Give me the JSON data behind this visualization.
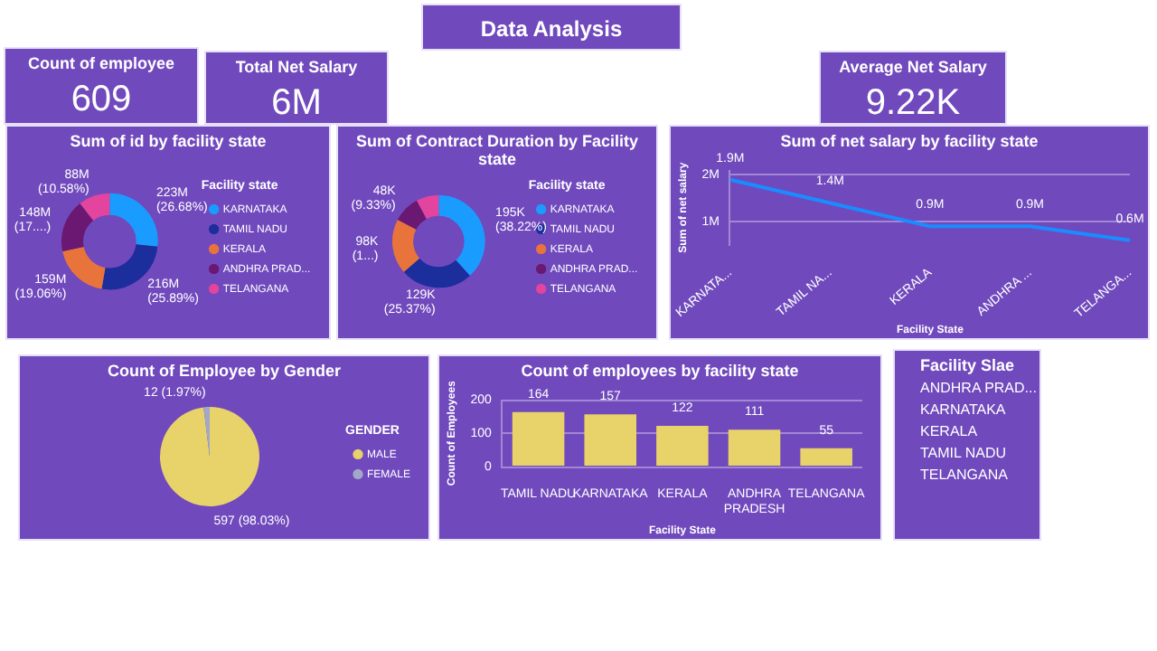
{
  "chart_data": [
    {
      "type": "other",
      "title": "Data Analysis"
    },
    {
      "type": "other",
      "title": "Count of employee",
      "annotations": [
        "609"
      ]
    },
    {
      "type": "other",
      "title": "Total Net Salary",
      "annotations": [
        "6M"
      ]
    },
    {
      "type": "other",
      "title": "Average Net Salary",
      "annotations": [
        "9.22K"
      ]
    },
    {
      "type": "donut",
      "title": "Sum of id by facility state",
      "legend_title": "Facility state",
      "legend": "right",
      "categories": [
        "KARNATAKA",
        "TAMIL NADU",
        "KERALA",
        "ANDHRA PRAD...",
        "TELANGANA"
      ],
      "values": [
        223000000,
        216000000,
        159000000,
        148000000,
        88000000
      ],
      "colors": [
        "#1a9cff",
        "#1c2d9c",
        "#e8743c",
        "#6a1872",
        "#e2449e"
      ],
      "value_labels": [
        "223M\n(26.68%)",
        "216M\n(25.89%)",
        "159M\n(19.06%)",
        "148M\n(17....)",
        "88M\n(10.58%)"
      ]
    },
    {
      "type": "donut",
      "title": "Sum of Contract Duration by Facility state",
      "legend_title": "Facility state",
      "legend": "right",
      "categories": [
        "KARNATAKA",
        "TAMIL NADU",
        "KERALA",
        "ANDHRA PRAD...",
        "TELANGANA"
      ],
      "values": [
        195000,
        129000,
        98000,
        48000,
        40000
      ],
      "colors": [
        "#1a9cff",
        "#1c2d9c",
        "#e8743c",
        "#6a1872",
        "#e2449e"
      ],
      "value_labels": [
        "195K\n(38.22%)",
        "129K\n(25.37%)",
        "98K\n(1...)",
        "48K\n(9.33%)",
        null
      ]
    },
    {
      "type": "line",
      "title": "Sum of net salary by facility state",
      "xlabel": "Facility State",
      "ylabel": "Sum of net salary",
      "categories": [
        "KARNATA...",
        "TAMIL NA...",
        "KERALA",
        "ANDHRA ...",
        "TELANGA..."
      ],
      "series": [
        {
          "color": "#1a8cff",
          "values": [
            1.9,
            1.4,
            0.9,
            0.9,
            0.6
          ]
        }
      ],
      "value_labels": [
        "1.9M",
        "1.4M",
        "0.9M",
        "0.9M",
        "0.6M"
      ],
      "ylim": [
        0.5,
        2.1
      ],
      "yticks": [
        {
          "value": 1,
          "label": "1M"
        },
        {
          "value": 2,
          "label": "2M"
        }
      ],
      "grid": "y",
      "marker": "none"
    },
    {
      "type": "pie",
      "title": "Count of Employee by Gender",
      "legend_title": "GENDER",
      "legend": "right",
      "categories": [
        "MALE",
        "FEMALE"
      ],
      "values": [
        597,
        12
      ],
      "colors": [
        "#e8d26a",
        "#a3a8c8"
      ],
      "value_labels": [
        "597 (98.03%)",
        "12 (1.97%)"
      ]
    },
    {
      "type": "bar",
      "title": "Count of employees by facility state",
      "xlabel": "Facility State",
      "ylabel": "Count of Employees",
      "categories": [
        "TAMIL NADU",
        "KARNATAKA",
        "KERALA",
        "ANDHRA PRADESH",
        "TELANGANA"
      ],
      "values": [
        164,
        157,
        122,
        111,
        55
      ],
      "color": "#e8d26a",
      "ylim": [
        0,
        200
      ],
      "yticks": [
        0,
        100,
        200
      ],
      "grid": "y",
      "data_labels": true
    },
    {
      "type": "other",
      "title": "Facility Slae",
      "annotations": [
        "ANDHRA PRAD...",
        "KARNATAKA",
        "KERALA",
        "TAMIL NADU",
        "TELANGANA"
      ]
    }
  ]
}
